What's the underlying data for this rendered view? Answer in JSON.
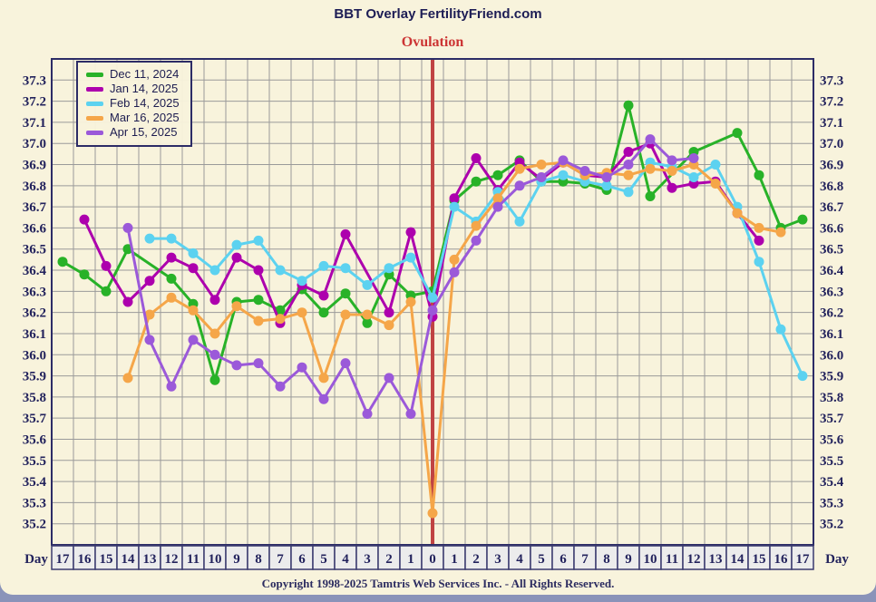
{
  "header": {
    "title": "BBT Overlay FertilityFriend.com"
  },
  "footer": {
    "copyright": "Copyright 1998-2025 Tamtris Web Services Inc. - All Rights Reserved."
  },
  "colors": {
    "background": "#f8f3dc",
    "grid": "#9a9a9a",
    "border": "#2c2c66",
    "axis_text": "#22225c",
    "ovulation_line": "#c04343",
    "day_cell_bg": "#ececec",
    "bottom_band": "#8a93b9"
  },
  "chart_data": {
    "type": "line",
    "title": "BBT Overlay FertilityFriend.com",
    "ovulation_label": "Ovulation",
    "day_axis_label": "Day",
    "grid": true,
    "legend_position": "top-left",
    "ylim": [
      35.1,
      37.4
    ],
    "y_ticks": [
      "37.3",
      "37.2",
      "37.1",
      "37.0",
      "36.9",
      "36.8",
      "36.7",
      "36.6",
      "36.5",
      "36.4",
      "36.3",
      "36.2",
      "36.1",
      "36.0",
      "35.9",
      "35.8",
      "35.7",
      "35.6",
      "35.5",
      "35.4",
      "35.3",
      "35.2"
    ],
    "x_categories": [
      "17",
      "16",
      "15",
      "14",
      "13",
      "12",
      "11",
      "10",
      "9",
      "8",
      "7",
      "6",
      "5",
      "4",
      "3",
      "2",
      "1",
      "0",
      "1",
      "2",
      "3",
      "4",
      "5",
      "6",
      "7",
      "8",
      "9",
      "10",
      "11",
      "12",
      "13",
      "14",
      "15",
      "16",
      "17"
    ],
    "ovulation_x_index": 17,
    "series": [
      {
        "label": "Dec 11, 2024",
        "color": "#28b228",
        "values": [
          36.44,
          36.38,
          36.3,
          36.5,
          null,
          36.36,
          36.24,
          35.88,
          36.25,
          36.26,
          36.21,
          36.31,
          36.2,
          36.29,
          36.15,
          36.38,
          36.28,
          36.3,
          36.73,
          36.82,
          36.85,
          36.92,
          36.82,
          36.82,
          36.81,
          36.78,
          37.18,
          36.75,
          null,
          36.96,
          null,
          37.05,
          36.85,
          36.6,
          36.64
        ]
      },
      {
        "label": "Jan 14, 2025",
        "color": "#ad00ad",
        "values": [
          null,
          36.64,
          36.42,
          36.25,
          36.35,
          36.46,
          36.41,
          36.26,
          36.46,
          36.4,
          36.15,
          36.33,
          36.28,
          36.57,
          null,
          36.2,
          36.58,
          36.18,
          36.74,
          36.93,
          36.78,
          36.91,
          36.83,
          36.91,
          36.85,
          36.84,
          36.96,
          37.0,
          36.79,
          36.81,
          36.82,
          36.67,
          36.54,
          null,
          null
        ]
      },
      {
        "label": "Feb 14, 2025",
        "color": "#5cd2f0",
        "values": [
          null,
          null,
          null,
          null,
          36.55,
          36.55,
          36.48,
          36.4,
          36.52,
          36.54,
          36.4,
          36.35,
          36.42,
          36.41,
          36.33,
          36.41,
          36.46,
          36.27,
          36.7,
          36.63,
          36.77,
          36.63,
          36.82,
          36.85,
          36.82,
          36.8,
          36.77,
          36.91,
          36.89,
          36.84,
          36.9,
          36.7,
          36.44,
          36.12,
          35.9
        ]
      },
      {
        "label": "Mar 16, 2025",
        "color": "#f5a649",
        "values": [
          null,
          null,
          null,
          35.89,
          36.19,
          36.27,
          36.21,
          36.1,
          36.23,
          36.16,
          36.17,
          36.2,
          35.89,
          36.19,
          36.19,
          36.14,
          36.25,
          35.25,
          36.45,
          36.61,
          36.74,
          36.88,
          36.9,
          36.91,
          36.85,
          36.86,
          36.85,
          36.88,
          36.87,
          36.9,
          36.81,
          36.67,
          36.6,
          36.58,
          null
        ]
      },
      {
        "label": "Apr 15, 2025",
        "color": "#9b59d9",
        "values": [
          null,
          null,
          null,
          36.6,
          36.07,
          35.85,
          36.07,
          36.0,
          35.95,
          35.96,
          35.85,
          35.94,
          35.79,
          35.96,
          35.72,
          35.89,
          35.72,
          36.21,
          36.39,
          36.54,
          36.7,
          36.8,
          36.84,
          36.92,
          36.87,
          36.84,
          36.9,
          37.02,
          36.92,
          36.93,
          null,
          null,
          null,
          null,
          null
        ]
      }
    ]
  }
}
